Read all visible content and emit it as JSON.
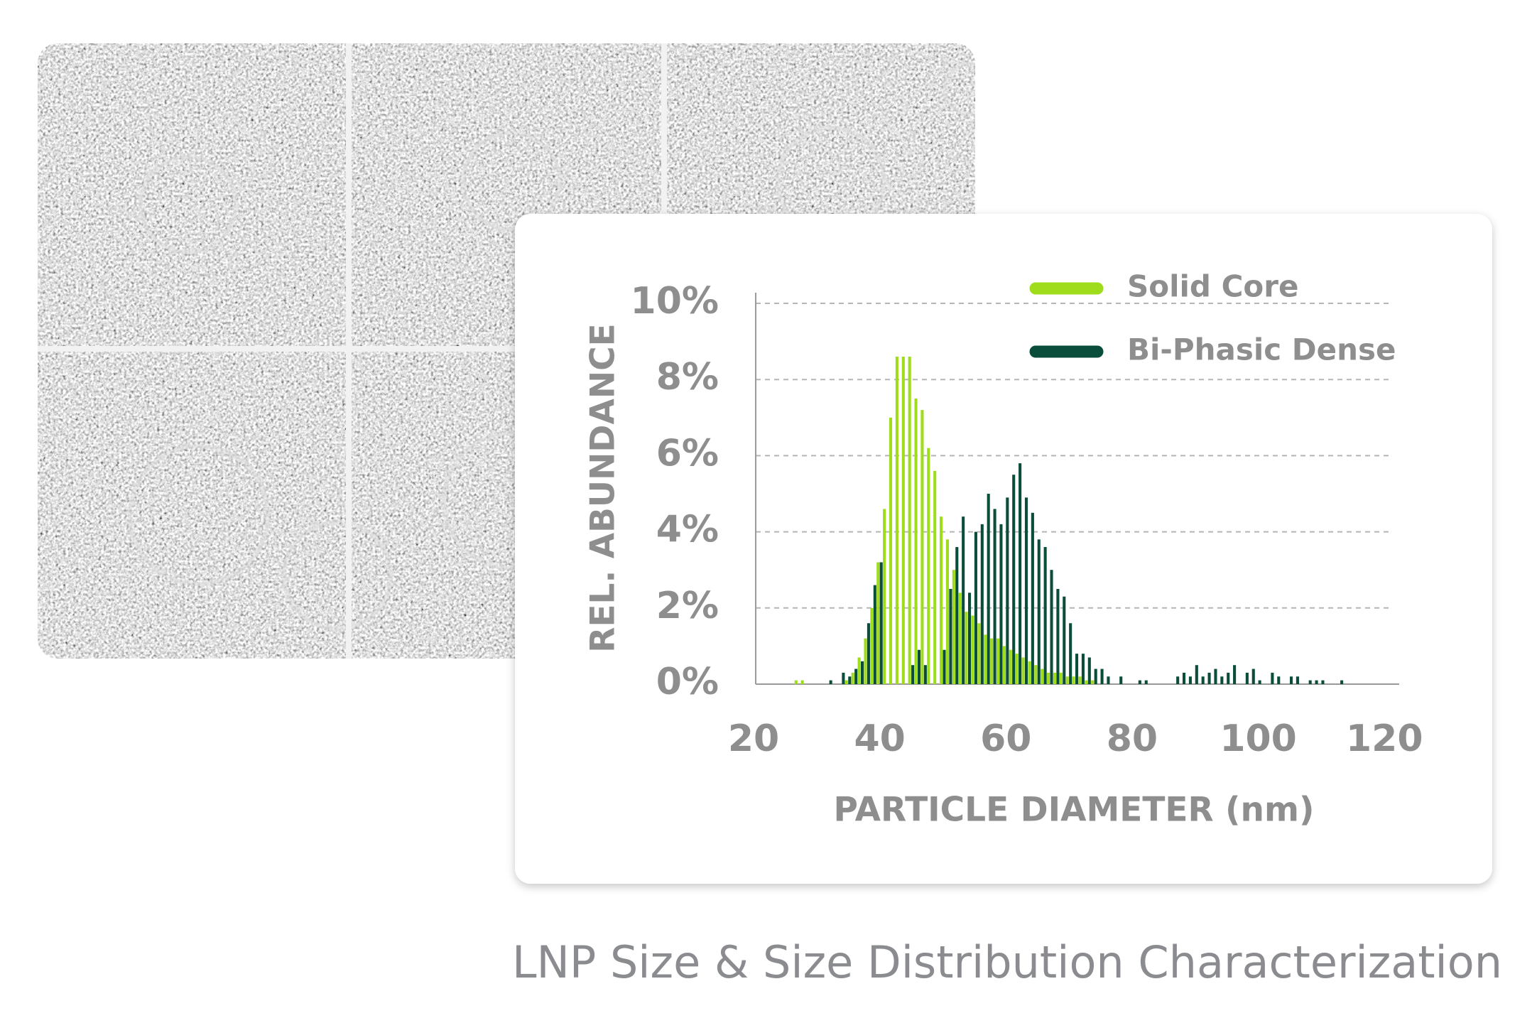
{
  "chart_data": {
    "type": "bar",
    "x_label": "PARTICLE DIAMETER (nm)",
    "y_label": "REL. ABUNDANCE",
    "x": [
      27,
      28,
      29,
      30,
      31,
      32,
      33,
      34,
      35,
      36,
      37,
      38,
      39,
      40,
      41,
      42,
      43,
      44,
      45,
      46,
      47,
      48,
      49,
      50,
      51,
      52,
      53,
      54,
      55,
      56,
      57,
      58,
      59,
      60,
      61,
      62,
      63,
      64,
      65,
      66,
      67,
      68,
      69,
      70,
      71,
      72,
      73,
      74,
      75,
      76,
      77,
      78,
      79,
      80,
      81,
      82,
      83,
      84,
      85,
      86,
      87,
      88,
      89,
      90,
      91,
      92,
      93,
      94,
      95,
      96,
      97,
      98,
      99,
      100,
      101,
      102,
      103,
      104,
      105,
      106,
      107,
      108,
      109,
      110,
      111,
      112,
      113
    ],
    "series": [
      {
        "name": "Solid Core",
        "color": "#9fdc1c",
        "values": [
          0.1,
          0.1,
          null,
          null,
          null,
          null,
          null,
          null,
          0.1,
          0.3,
          0.7,
          1.2,
          2.0,
          3.2,
          4.6,
          7.0,
          8.6,
          8.6,
          8.6,
          7.5,
          7.2,
          6.2,
          5.6,
          4.4,
          3.8,
          3.0,
          2.4,
          1.9,
          1.8,
          1.6,
          1.3,
          1.2,
          1.2,
          1.0,
          0.9,
          0.8,
          0.7,
          0.6,
          0.5,
          0.4,
          0.3,
          0.3,
          0.3,
          0.2,
          0.2,
          0.2,
          0.1,
          0.1,
          null,
          null,
          null,
          null,
          null,
          null,
          null,
          null,
          null,
          null,
          null,
          null,
          null,
          null,
          null,
          null,
          null,
          null,
          null,
          null,
          null,
          null,
          null,
          null,
          null,
          null,
          null,
          null,
          null,
          null,
          null,
          null,
          null,
          null,
          null,
          null,
          null,
          null,
          null
        ]
      },
      {
        "name": "Bi-Phasic Dense",
        "color": "#0b4d3b",
        "values": [
          null,
          null,
          null,
          null,
          null,
          0.1,
          null,
          0.3,
          0.2,
          0.4,
          0.6,
          1.6,
          2.6,
          3.2,
          null,
          null,
          null,
          null,
          0.5,
          0.9,
          0.5,
          null,
          null,
          0.9,
          2.5,
          3.6,
          4.4,
          2.4,
          4.0,
          4.2,
          5.0,
          4.6,
          4.2,
          4.9,
          5.5,
          5.8,
          4.9,
          4.5,
          3.8,
          3.6,
          3.0,
          2.5,
          2.3,
          1.6,
          0.8,
          0.8,
          0.7,
          0.4,
          0.4,
          0.2,
          null,
          0.2,
          null,
          null,
          0.1,
          0.1,
          null,
          null,
          null,
          null,
          0.2,
          0.3,
          0.2,
          0.5,
          0.2,
          0.3,
          0.4,
          0.2,
          0.3,
          0.5,
          null,
          0.3,
          0.4,
          0.1,
          null,
          0.3,
          0.2,
          null,
          0.2,
          0.2,
          null,
          0.1,
          0.1,
          0.1,
          null,
          null,
          0.1
        ]
      }
    ],
    "xlim": [
      20,
      122
    ],
    "xticks": [
      20,
      40,
      60,
      80,
      100,
      120
    ],
    "ylim": [
      0,
      10
    ],
    "yticks": [
      {
        "value": 0,
        "label": "0%"
      },
      {
        "value": 2,
        "label": "2%"
      },
      {
        "value": 4,
        "label": "4%"
      },
      {
        "value": 6,
        "label": "6%"
      },
      {
        "value": 8,
        "label": "8%"
      },
      {
        "value": 10,
        "label": "10%"
      }
    ],
    "grid": true
  },
  "caption": "LNP Size & Size Distribution Characterization"
}
